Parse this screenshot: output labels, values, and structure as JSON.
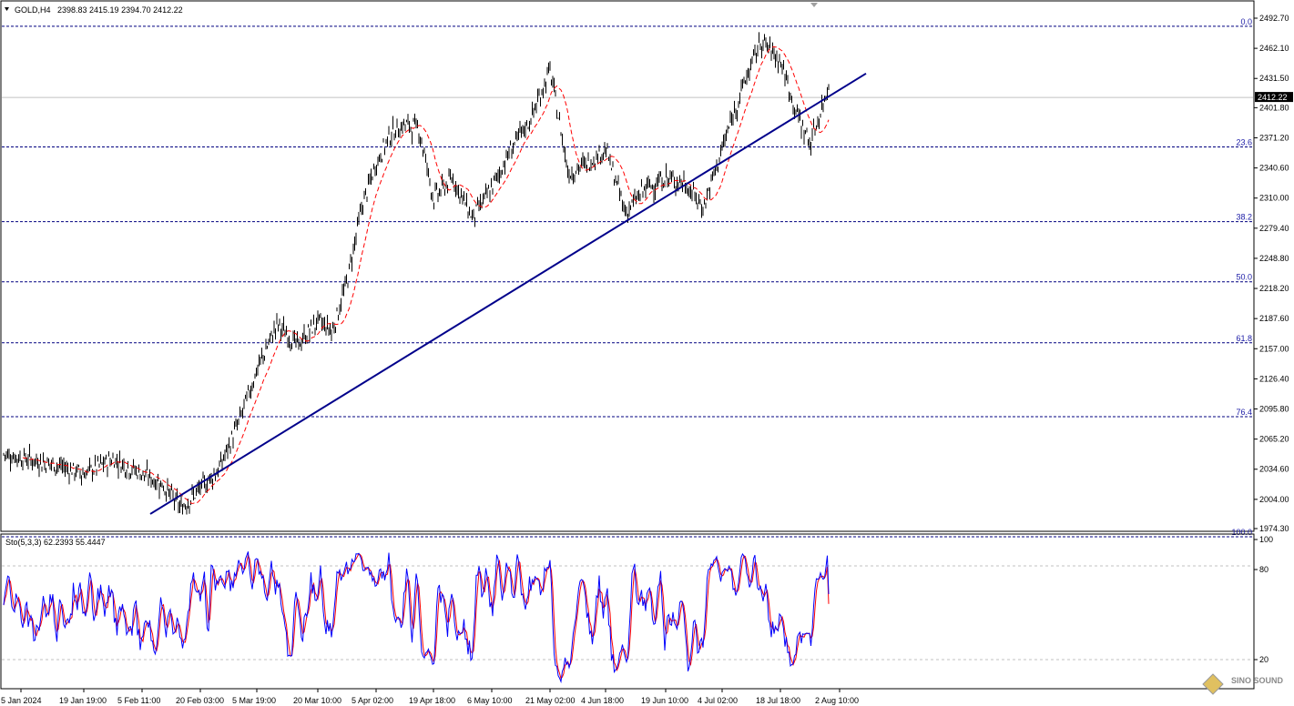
{
  "symbol_header": {
    "symbol": "GOLD,H4",
    "ohlc": "2398.83 2415.19 2394.70 2412.22"
  },
  "indicator_header": {
    "label": "Sto(5,3,3) 62.2393 55.4447"
  },
  "watermark": "SINO SOUND",
  "colors": {
    "candles": "#000000",
    "ma": "#ff0000",
    "trendline": "#00008b",
    "fib": "#000080",
    "stoch_main": "#0000ff",
    "stoch_signal": "#ff0000",
    "background": "#ffffff"
  },
  "chart_data": [
    {
      "type": "line",
      "name": "price",
      "title": "GOLD,H4",
      "current_price": 2412.22,
      "y_ticks": [
        "2492.70",
        "2462.10",
        "2431.50",
        "2401.80",
        "2371.20",
        "2340.60",
        "2310.00",
        "2279.40",
        "2248.80",
        "2218.20",
        "2187.60",
        "2157.00",
        "2126.40",
        "2095.80",
        "2065.20",
        "2034.60",
        "2004.00",
        "1974.30"
      ],
      "y_tick_values": [
        2492.7,
        2462.1,
        2431.5,
        2401.8,
        2371.2,
        2340.6,
        2310.0,
        2279.4,
        2248.8,
        2218.2,
        2187.6,
        2157.0,
        2126.4,
        2095.8,
        2065.2,
        2034.6,
        2004.0,
        1974.3
      ],
      "x_ticks": [
        "5 Jan 2024",
        "19 Jan 19:00",
        "5 Feb 11:00",
        "20 Feb 03:00",
        "5 Mar 19:00",
        "20 Mar 10:00",
        "5 Apr 02:00",
        "19 Apr 18:00",
        "6 May 10:00",
        "21 May 02:00",
        "4 Jun 18:00",
        "19 Jun 10:00",
        "4 Jul 02:00",
        "18 Jul 18:00",
        "2 Aug 10:00"
      ],
      "fib_levels": [
        {
          "label": "0.0",
          "price": 2484.5
        },
        {
          "label": "23.6",
          "price": 2362.0
        },
        {
          "label": "38.2",
          "price": 2286.0
        },
        {
          "label": "50.0",
          "price": 2225.0
        },
        {
          "label": "61.8",
          "price": 2163.0
        },
        {
          "label": "76.4",
          "price": 2088.0
        },
        {
          "label": "100.0",
          "price": 1966.0
        }
      ],
      "trendline": {
        "start": [
          "5 Feb 11:00",
          1984.0
        ],
        "end": [
          "2 Aug 10:00",
          2420.0
        ]
      },
      "close_series": [
        [
          "5 Jan 2024",
          2050
        ],
        [
          "12 Jan",
          2040
        ],
        [
          "19 Jan 19:00",
          2030
        ],
        [
          "26 Jan",
          2045
        ],
        [
          "5 Feb 11:00",
          2030
        ],
        [
          "12 Feb",
          2020
        ],
        [
          "15 Feb",
          1995
        ],
        [
          "20 Feb 03:00",
          2015
        ],
        [
          "27 Feb",
          2035
        ],
        [
          "1 Mar",
          2080
        ],
        [
          "5 Mar 19:00",
          2135
        ],
        [
          "8 Mar",
          2182
        ],
        [
          "14 Mar",
          2160
        ],
        [
          "20 Mar 10:00",
          2185
        ],
        [
          "25 Mar",
          2175
        ],
        [
          "28 Mar",
          2225
        ],
        [
          "2 Apr",
          2300
        ],
        [
          "5 Apr 02:00",
          2345
        ],
        [
          "10 Apr",
          2375
        ],
        [
          "12 Apr",
          2385
        ],
        [
          "16 Apr",
          2380
        ],
        [
          "19 Apr 18:00",
          2310
        ],
        [
          "25 Apr",
          2330
        ],
        [
          "2 May",
          2290
        ],
        [
          "6 May 10:00",
          2320
        ],
        [
          "10 May",
          2360
        ],
        [
          "16 May",
          2390
        ],
        [
          "21 May 02:00",
          2440
        ],
        [
          "24 May",
          2335
        ],
        [
          "30 May",
          2345
        ],
        [
          "4 Jun 18:00",
          2360
        ],
        [
          "7 Jun",
          2295
        ],
        [
          "12 Jun",
          2320
        ],
        [
          "19 Jun 10:00",
          2330
        ],
        [
          "24 Jun",
          2325
        ],
        [
          "27 Jun",
          2300
        ],
        [
          "4 Jul 02:00",
          2360
        ],
        [
          "11 Jul",
          2420
        ],
        [
          "16 Jul",
          2470
        ],
        [
          "18 Jul 18:00",
          2450
        ],
        [
          "22 Jul",
          2400
        ],
        [
          "25 Jul",
          2365
        ],
        [
          "30 Jul",
          2410
        ],
        [
          "2 Aug 10:00",
          2478
        ],
        [
          "5 Aug",
          2412
        ]
      ]
    },
    {
      "type": "line",
      "name": "stochastic",
      "title": "Sto(5,3,3) 62.2393 55.4447",
      "y_ticks": [
        "100",
        "80",
        "20"
      ],
      "ylim": [
        0,
        100
      ],
      "levels": [
        80,
        20
      ],
      "main_last": 62.2393,
      "signal_last": 55.4447
    }
  ]
}
